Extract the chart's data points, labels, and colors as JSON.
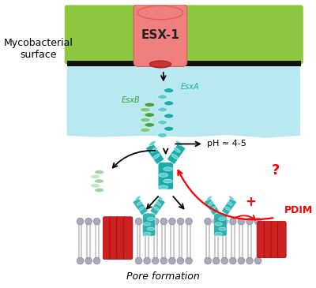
{
  "bg_color": "#ffffff",
  "green_membrane_color": "#8dc63f",
  "black_membrane_color": "#111111",
  "light_blue_bg": "#b8e8f0",
  "teal_protein_color": "#1aabab",
  "teal_light_color": "#5dcfcf",
  "red_pore_color": "#cc2222",
  "green_esxb_color": "#3a9a3a",
  "green_esxb_light": "#70cc70",
  "esx1_body_color": "#f08080",
  "esx1_inner_color": "#cc3333",
  "membrane_head_color": "#aaaabc",
  "membrane_tail_color": "#cccccc",
  "text_mycobacterial": "Mycobacterial\nsurface",
  "text_esx1": "ESX-1",
  "text_esxa": "EsxA",
  "text_esxb": "EsxB",
  "text_ph": "pH ≈ 4-5",
  "text_plus": "+",
  "text_pdim": "PDIM",
  "text_question": "?",
  "text_pore": "Pore formation",
  "figsize": [
    4.0,
    3.65
  ],
  "dpi": 100
}
